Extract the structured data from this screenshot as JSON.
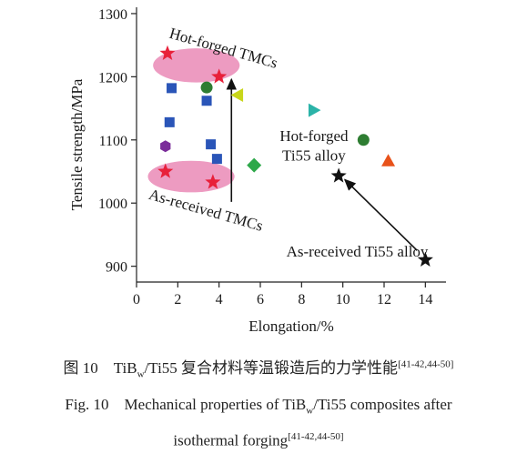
{
  "chart_data": {
    "type": "scatter",
    "ylabel": "Tensile strength/MPa",
    "xlabel": "Elongation/%",
    "xlim": [
      0,
      15
    ],
    "ylim": [
      875,
      1310
    ],
    "xticks": [
      0,
      2,
      4,
      6,
      8,
      10,
      12,
      14
    ],
    "yticks": [
      900,
      1000,
      1100,
      1200,
      1300
    ],
    "points": [
      {
        "x": 1.5,
        "y": 1237,
        "marker": "star",
        "color": "#e8203a"
      },
      {
        "x": 4.0,
        "y": 1200,
        "marker": "star",
        "color": "#e8203a"
      },
      {
        "x": 1.4,
        "y": 1050,
        "marker": "star",
        "color": "#e8203a"
      },
      {
        "x": 3.7,
        "y": 1033,
        "marker": "star",
        "color": "#e8203a"
      },
      {
        "x": 1.7,
        "y": 1182,
        "marker": "square",
        "color": "#2a55b8"
      },
      {
        "x": 1.6,
        "y": 1128,
        "marker": "square",
        "color": "#2a55b8"
      },
      {
        "x": 3.4,
        "y": 1162,
        "marker": "square",
        "color": "#2a55b8"
      },
      {
        "x": 3.6,
        "y": 1093,
        "marker": "square",
        "color": "#2a55b8"
      },
      {
        "x": 3.9,
        "y": 1070,
        "marker": "square",
        "color": "#2a55b8"
      },
      {
        "x": 3.4,
        "y": 1183,
        "marker": "circle",
        "color": "#2e7d32"
      },
      {
        "x": 11.0,
        "y": 1100,
        "marker": "circle",
        "color": "#2e7d32"
      },
      {
        "x": 1.4,
        "y": 1090,
        "marker": "hexagon",
        "color": "#7b2d9a"
      },
      {
        "x": 4.9,
        "y": 1171,
        "marker": "triangle-left",
        "color": "#c8d61a"
      },
      {
        "x": 8.6,
        "y": 1147,
        "marker": "triangle-right",
        "color": "#2bb3a8"
      },
      {
        "x": 5.7,
        "y": 1060,
        "marker": "diamond",
        "color": "#2ea84a"
      },
      {
        "x": 12.2,
        "y": 1067,
        "marker": "triangle-up",
        "color": "#e8521a"
      },
      {
        "x": 9.8,
        "y": 1043,
        "marker": "star",
        "color": "#111111"
      },
      {
        "x": 14.0,
        "y": 910,
        "marker": "star",
        "color": "#111111"
      }
    ],
    "ellipses": [
      {
        "cx": 2.9,
        "cy": 1218,
        "rx": 2.1,
        "ry": 27,
        "color": "#ea8ab6"
      },
      {
        "cx": 2.65,
        "cy": 1042,
        "rx": 2.1,
        "ry": 25,
        "color": "#ea8ab6"
      }
    ],
    "arrows": [
      {
        "x1": 4.6,
        "y1": 1002,
        "x2": 4.6,
        "y2": 1196
      },
      {
        "x1": 13.6,
        "y1": 925,
        "x2": 10.1,
        "y2": 1037
      }
    ],
    "annotations": [
      {
        "text": "Hot-forged TMCs",
        "x": 1.55,
        "y": 1262,
        "rotate": 16,
        "anchor": "start"
      },
      {
        "text": "As-received TMCs",
        "x": 0.55,
        "y": 1007,
        "rotate": 16,
        "anchor": "start"
      },
      {
        "text": "Hot-forged",
        "x": 8.6,
        "y": 1098,
        "rotate": 0,
        "anchor": "middle"
      },
      {
        "text": "Ti55 alloy",
        "x": 8.6,
        "y": 1067,
        "rotate": 0,
        "anchor": "middle"
      },
      {
        "text": "As-received Ti55 alloy",
        "x": 10.7,
        "y": 915,
        "rotate": 0,
        "anchor": "middle"
      }
    ]
  },
  "caption": {
    "cn_prefix": "图 10　TiB",
    "cn_sub": "w",
    "cn_main": "/Ti55 复合材料等温锻造后的力学性能",
    "cn_ref": "[41-42,44-50]",
    "en_line1_prefix": "Fig. 10　Mechanical properties of TiB",
    "en_sub": "w",
    "en_line1_rest": "/Ti55 composites after",
    "en_line2": "isothermal forging",
    "en_ref": "[41-42,44-50]"
  }
}
